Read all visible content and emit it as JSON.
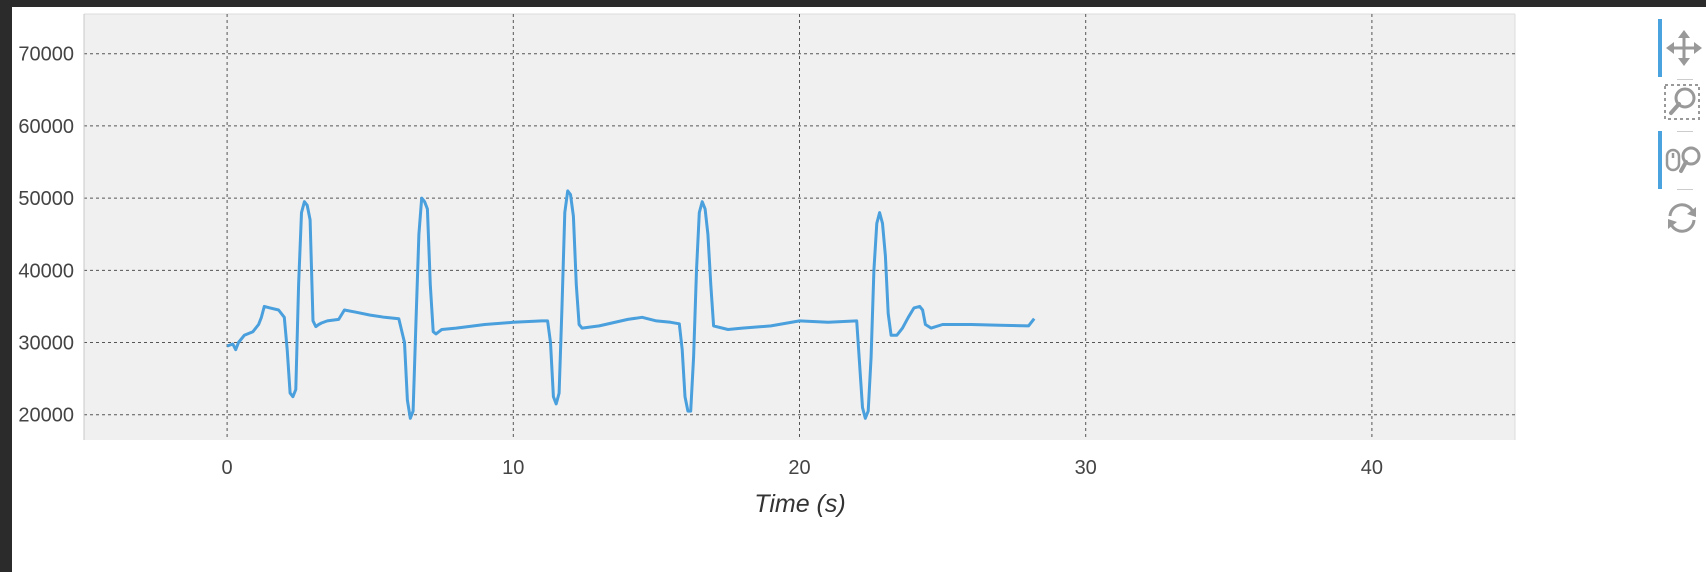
{
  "colors": {
    "line": "#4a9fdd",
    "plot_bg": "#f0f0f0",
    "grid": "#555555",
    "toolbar_active": "#4aa3df",
    "toolbar_icon": "#999999"
  },
  "toolbar": {
    "tools": [
      {
        "icon": "pan-icon",
        "active": true
      },
      {
        "icon": "box-zoom-icon",
        "active": false
      },
      {
        "icon": "wheel-zoom-icon",
        "active": true
      },
      {
        "icon": "reset-icon",
        "active": false
      }
    ]
  },
  "chart_data": {
    "type": "line",
    "title": "",
    "xlabel": "Time (s)",
    "ylabel": "",
    "xlim": [
      -5,
      45
    ],
    "ylim": [
      16500,
      75500
    ],
    "x_ticks": [
      0,
      10,
      20,
      30,
      40
    ],
    "y_ticks": [
      20000,
      30000,
      40000,
      50000,
      60000,
      70000
    ],
    "grid": true,
    "series": [
      {
        "x": [
          0,
          0.2,
          0.3,
          0.4,
          0.6,
          0.9,
          1.1,
          1.2,
          1.3,
          1.5,
          1.8,
          2.0,
          2.1,
          2.2,
          2.3,
          2.4,
          2.5,
          2.6,
          2.7,
          2.8,
          2.9,
          3.0,
          3.1,
          3.2,
          3.3,
          3.5,
          3.9,
          4.1,
          4.5,
          5.0,
          5.5,
          6.0,
          6.2,
          6.3,
          6.4,
          6.5,
          6.6,
          6.7,
          6.8,
          6.9,
          7.0,
          7.1,
          7.2,
          7.3,
          7.4,
          7.5,
          8.0,
          9.0,
          10.0,
          11.0,
          11.2,
          11.3,
          11.4,
          11.5,
          11.6,
          11.7,
          11.8,
          11.9,
          12.0,
          12.1,
          12.2,
          12.3,
          12.4,
          13.0,
          14.0,
          14.5,
          15.0,
          15.5,
          15.8,
          15.9,
          16.0,
          16.1,
          16.2,
          16.3,
          16.4,
          16.5,
          16.6,
          16.7,
          16.8,
          16.9,
          17.0,
          17.5,
          18.0,
          19.0,
          20.0,
          21.0,
          22.0,
          22.1,
          22.2,
          22.3,
          22.4,
          22.5,
          22.6,
          22.7,
          22.8,
          22.9,
          23.0,
          23.1,
          23.2,
          23.4,
          23.6,
          23.8,
          24.0,
          24.2,
          24.3,
          24.4,
          24.6,
          25.0,
          26.0,
          27.0,
          28.0,
          28.2
        ],
        "y": [
          29500,
          29800,
          29000,
          30000,
          31000,
          31500,
          32500,
          33500,
          35000,
          34800,
          34500,
          33500,
          29000,
          23000,
          22500,
          23500,
          38000,
          48000,
          49500,
          49000,
          47000,
          33000,
          32200,
          32500,
          32700,
          33000,
          33200,
          34500,
          34200,
          33800,
          33500,
          33300,
          30000,
          22000,
          19500,
          20500,
          33000,
          45000,
          50000,
          49500,
          48500,
          38000,
          31500,
          31200,
          31500,
          31800,
          32000,
          32500,
          32800,
          33000,
          33000,
          30000,
          22500,
          21500,
          23000,
          35000,
          48000,
          51000,
          50500,
          47500,
          38000,
          32500,
          32000,
          32300,
          33200,
          33500,
          33000,
          32800,
          32600,
          29000,
          22500,
          20500,
          20500,
          28000,
          40000,
          48000,
          49500,
          48500,
          45000,
          38000,
          32300,
          31800,
          32000,
          32300,
          33000,
          32800,
          33000,
          27000,
          21000,
          19500,
          20500,
          28000,
          40000,
          46500,
          48000,
          46500,
          42000,
          34000,
          31000,
          31000,
          32000,
          33500,
          34800,
          35000,
          34500,
          32500,
          32000,
          32500,
          32500,
          32400,
          32300,
          33300
        ]
      }
    ]
  }
}
